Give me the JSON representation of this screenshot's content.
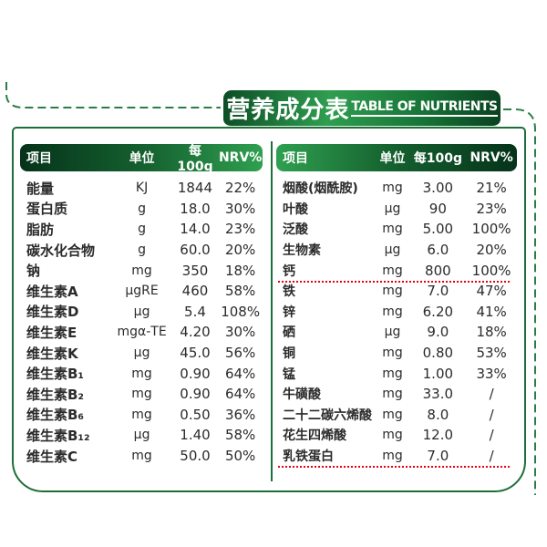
{
  "banner": {
    "title_zh": "营养成分表",
    "title_en": "TABLE OF NUTRIENTS"
  },
  "colors": {
    "accent_green": "#1d6e38",
    "header_green_dark": "#05331a",
    "header_green_bright": "#2fa050",
    "underline_red": "#e60012"
  },
  "left_table": {
    "headers": {
      "item": "项目",
      "unit": "单位",
      "per100g": "每100g",
      "nrv": "NRV%"
    },
    "rows": [
      {
        "name": "能量",
        "unit": "KJ",
        "value": "1844",
        "nrv": "22%"
      },
      {
        "name": "蛋白质",
        "unit": "g",
        "value": "18.0",
        "nrv": "30%"
      },
      {
        "name": "脂肪",
        "unit": "g",
        "value": "14.0",
        "nrv": "23%"
      },
      {
        "name": "碳水化合物",
        "unit": "g",
        "value": "60.0",
        "nrv": "20%"
      },
      {
        "name": "钠",
        "unit": "mg",
        "value": "350",
        "nrv": "18%"
      },
      {
        "name": "维生素A",
        "unit": "μgRE",
        "value": "460",
        "nrv": "58%"
      },
      {
        "name": "维生素D",
        "unit": "μg",
        "value": "5.4",
        "nrv": "108%"
      },
      {
        "name": "维生素E",
        "unit": "mgα-TE",
        "value": "4.20",
        "nrv": "30%"
      },
      {
        "name": "维生素K",
        "unit": "μg",
        "value": "45.0",
        "nrv": "56%"
      },
      {
        "name": "维生素B₁",
        "unit": "mg",
        "value": "0.90",
        "nrv": "64%"
      },
      {
        "name": "维生素B₂",
        "unit": "mg",
        "value": "0.90",
        "nrv": "64%"
      },
      {
        "name": "维生素B₆",
        "unit": "mg",
        "value": "0.50",
        "nrv": "36%"
      },
      {
        "name": "维生素B₁₂",
        "unit": "μg",
        "value": "1.40",
        "nrv": "58%"
      },
      {
        "name": "维生素C",
        "unit": "mg",
        "value": "50.0",
        "nrv": "50%"
      }
    ]
  },
  "right_table": {
    "headers": {
      "item": "项目",
      "unit": "单位",
      "per100g": "每100g",
      "nrv": "NRV%"
    },
    "rows": [
      {
        "name": "烟酸(烟酰胺)",
        "unit": "mg",
        "value": "3.00",
        "nrv": "21%"
      },
      {
        "name": "叶酸",
        "unit": "μg",
        "value": "90",
        "nrv": "23%"
      },
      {
        "name": "泛酸",
        "unit": "mg",
        "value": "5.00",
        "nrv": "100%"
      },
      {
        "name": "生物素",
        "unit": "μg",
        "value": "6.0",
        "nrv": "20%"
      },
      {
        "name": "钙",
        "unit": "mg",
        "value": "800",
        "nrv": "100%",
        "underline": true
      },
      {
        "name": "铁",
        "unit": "mg",
        "value": "7.0",
        "nrv": "47%"
      },
      {
        "name": "锌",
        "unit": "mg",
        "value": "6.20",
        "nrv": "41%"
      },
      {
        "name": "硒",
        "unit": "μg",
        "value": "9.0",
        "nrv": "18%"
      },
      {
        "name": "铜",
        "unit": "mg",
        "value": "0.80",
        "nrv": "53%"
      },
      {
        "name": "锰",
        "unit": "mg",
        "value": "1.00",
        "nrv": "33%"
      },
      {
        "name": "牛磺酸",
        "unit": "mg",
        "value": "33.0",
        "nrv": "/"
      },
      {
        "name": "二十二碳六烯酸",
        "unit": "mg",
        "value": "8.0",
        "nrv": "/"
      },
      {
        "name": "花生四烯酸",
        "unit": "mg",
        "value": "12.0",
        "nrv": "/"
      },
      {
        "name": "乳铁蛋白",
        "unit": "mg",
        "value": "7.0",
        "nrv": "/",
        "underline": true
      }
    ]
  }
}
